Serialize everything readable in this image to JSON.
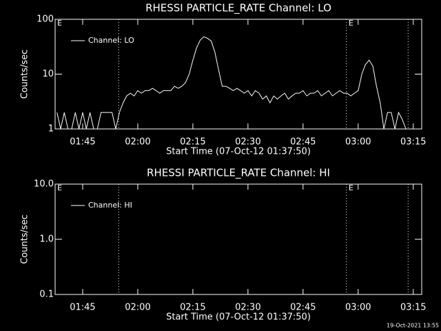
{
  "chart_data": [
    {
      "type": "line",
      "title": "RHESSI PARTICLE_RATE Channel: LO",
      "xlabel": "Start Time (07-Oct-12 01:37:50)",
      "ylabel": "Counts/sec",
      "xlim": [
        97.5,
        197.3
      ],
      "xticks": [
        {
          "value": 105,
          "label": "01:45"
        },
        {
          "value": 120,
          "label": "02:00"
        },
        {
          "value": 135,
          "label": "02:15"
        },
        {
          "value": 150,
          "label": "02:30"
        },
        {
          "value": 165,
          "label": "02:45"
        },
        {
          "value": 180,
          "label": "03:00"
        },
        {
          "value": 195,
          "label": "03:15"
        }
      ],
      "ylim": [
        1,
        100
      ],
      "yticks": [
        1,
        10,
        100
      ],
      "log_y": true,
      "legend": "upper left",
      "vlines": [
        114.8,
        176.8,
        193.6
      ],
      "markers": [
        {
          "x": 97.9,
          "label": "E"
        },
        {
          "x": 177.2,
          "label": "E"
        }
      ],
      "series": [
        {
          "name": "Channel: LO",
          "color": "#ffffff",
          "x": [
            98,
            99,
            100,
            101,
            102,
            103,
            104,
            105,
            106,
            107,
            108,
            109,
            110,
            111,
            112,
            113,
            114,
            115,
            116,
            117,
            118,
            119,
            120,
            121,
            122,
            123,
            124,
            125,
            126,
            127,
            128,
            129,
            130,
            131,
            132,
            133,
            134,
            135,
            136,
            137,
            138,
            139,
            140,
            141,
            142,
            143,
            144,
            145,
            146,
            147,
            148,
            149,
            150,
            151,
            152,
            153,
            154,
            155,
            156,
            157,
            158,
            159,
            160,
            161,
            162,
            163,
            164,
            165,
            166,
            167,
            168,
            169,
            170,
            171,
            172,
            173,
            174,
            175,
            176,
            177,
            178,
            179,
            180,
            181,
            182,
            183,
            184,
            185,
            186,
            187,
            188,
            189,
            190,
            191,
            192,
            193
          ],
          "values": [
            2,
            1,
            2,
            1,
            1,
            2,
            1,
            2,
            1,
            2,
            1,
            1,
            2,
            2,
            2,
            2,
            1,
            2,
            3,
            4,
            4.5,
            4,
            5,
            4.5,
            5,
            5,
            5.5,
            5,
            4.5,
            5,
            5,
            5,
            6,
            5.5,
            6,
            7,
            10,
            18,
            30,
            42,
            48,
            45,
            40,
            25,
            12,
            6,
            6,
            5.5,
            5,
            5.5,
            5,
            4.5,
            5,
            4,
            5,
            4.5,
            3.5,
            4,
            3,
            4,
            3.5,
            4,
            4.5,
            3.5,
            4,
            4.5,
            4.5,
            5,
            4,
            4.5,
            4.5,
            5,
            4,
            4.5,
            5,
            4,
            4.5,
            5,
            4.5,
            4.5,
            4,
            4.5,
            5,
            10,
            15,
            18,
            14,
            6,
            3,
            1,
            2,
            2,
            1,
            2,
            1.5,
            1
          ]
        }
      ]
    },
    {
      "type": "line",
      "title": "RHESSI PARTICLE_RATE Channel: HI",
      "xlabel": "Start Time (07-Oct-12 01:37:50)",
      "ylabel": "Counts/sec",
      "xlim": [
        97.5,
        197.3
      ],
      "xticks": [
        {
          "value": 105,
          "label": "01:45"
        },
        {
          "value": 120,
          "label": "02:00"
        },
        {
          "value": 135,
          "label": "02:15"
        },
        {
          "value": 150,
          "label": "02:30"
        },
        {
          "value": 165,
          "label": "02:45"
        },
        {
          "value": 180,
          "label": "03:00"
        },
        {
          "value": 195,
          "label": "03:15"
        }
      ],
      "ylim": [
        0.1,
        10
      ],
      "yticks": [
        {
          "value": 0.1,
          "label": "0.1"
        },
        {
          "value": 1,
          "label": "1.0"
        },
        {
          "value": 10,
          "label": "10.0"
        }
      ],
      "log_y": true,
      "legend": "upper left",
      "vlines": [
        114.8,
        176.8,
        193.6
      ],
      "markers": [
        {
          "x": 97.9,
          "label": "E"
        },
        {
          "x": 177.2,
          "label": "E"
        }
      ],
      "series": [
        {
          "name": "Channel: HI",
          "color": "#ffffff",
          "x": [],
          "values": []
        }
      ]
    }
  ],
  "footer": "19-Oct-2021 13:55"
}
